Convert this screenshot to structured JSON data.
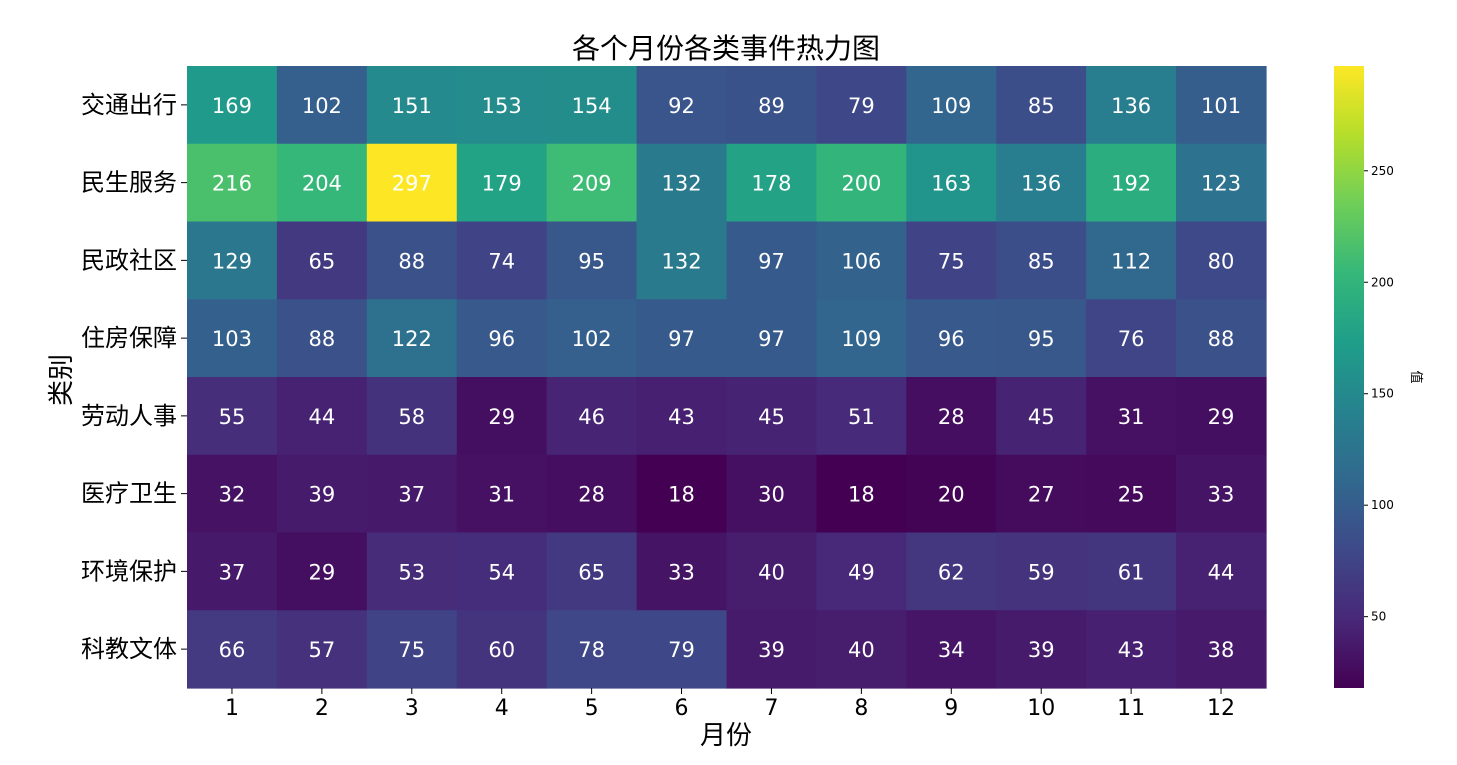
{
  "chart_data": {
    "type": "heatmap",
    "title": "各个月份各类事件热力图",
    "xlabel": "月份",
    "ylabel": "类别",
    "x_categories": [
      "1",
      "2",
      "3",
      "4",
      "5",
      "6",
      "7",
      "8",
      "9",
      "10",
      "11",
      "12"
    ],
    "y_categories": [
      "交通出行",
      "民生服务",
      "民政社区",
      "住房保障",
      "劳动人事",
      "医疗卫生",
      "环境保护",
      "科教文体"
    ],
    "values": [
      [
        169,
        102,
        151,
        153,
        154,
        92,
        89,
        79,
        109,
        85,
        136,
        101
      ],
      [
        216,
        204,
        297,
        179,
        209,
        132,
        178,
        200,
        163,
        136,
        192,
        123
      ],
      [
        129,
        65,
        88,
        74,
        95,
        132,
        97,
        106,
        75,
        85,
        112,
        80
      ],
      [
        103,
        88,
        122,
        96,
        102,
        97,
        97,
        109,
        96,
        95,
        76,
        88
      ],
      [
        55,
        44,
        58,
        29,
        46,
        43,
        45,
        51,
        28,
        45,
        31,
        29
      ],
      [
        32,
        39,
        37,
        31,
        28,
        18,
        30,
        18,
        20,
        27,
        25,
        33
      ],
      [
        37,
        29,
        53,
        54,
        65,
        33,
        40,
        49,
        62,
        59,
        61,
        44
      ],
      [
        66,
        57,
        75,
        60,
        78,
        79,
        39,
        40,
        34,
        39,
        43,
        38
      ]
    ],
    "colorbar": {
      "label": "值",
      "colormap": "viridis",
      "range": [
        18,
        297
      ],
      "ticks": [
        50,
        100,
        150,
        200,
        250
      ]
    },
    "annotations": true,
    "grid": false
  }
}
